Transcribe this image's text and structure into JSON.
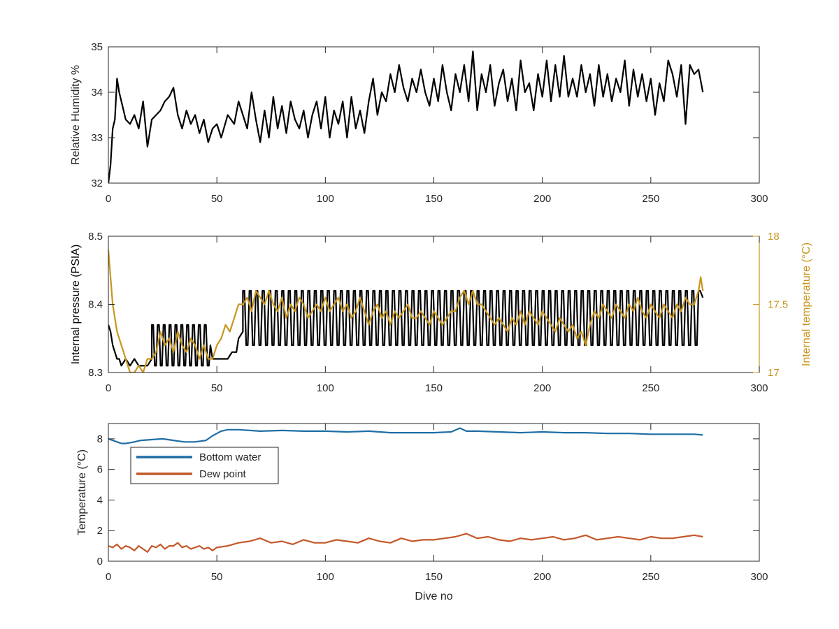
{
  "chart_data": [
    {
      "type": "line",
      "ylabel": "Relative Humidity %",
      "xlim": [
        0,
        300
      ],
      "ylim": [
        32,
        35
      ],
      "xticks": [
        0,
        50,
        100,
        150,
        200,
        250,
        300
      ],
      "yticks": [
        32,
        33,
        34,
        35
      ],
      "series": [
        {
          "color": "#000000",
          "x": [
            0,
            1,
            2,
            3,
            4,
            5,
            6,
            8,
            10,
            12,
            14,
            16,
            18,
            20,
            22,
            24,
            26,
            28,
            30,
            32,
            34,
            36,
            38,
            40,
            42,
            44,
            46,
            48,
            50,
            52,
            55,
            58,
            60,
            62,
            64,
            66,
            68,
            70,
            72,
            74,
            76,
            78,
            80,
            82,
            84,
            86,
            88,
            90,
            92,
            94,
            96,
            98,
            100,
            102,
            104,
            106,
            108,
            110,
            112,
            114,
            116,
            118,
            120,
            122,
            124,
            126,
            128,
            130,
            132,
            134,
            136,
            138,
            140,
            142,
            144,
            146,
            148,
            150,
            152,
            154,
            156,
            158,
            160,
            162,
            164,
            166,
            168,
            170,
            172,
            174,
            176,
            178,
            180,
            182,
            184,
            186,
            188,
            190,
            192,
            194,
            196,
            198,
            200,
            202,
            204,
            206,
            208,
            210,
            212,
            214,
            216,
            218,
            220,
            222,
            224,
            226,
            228,
            230,
            232,
            234,
            236,
            238,
            240,
            242,
            244,
            246,
            248,
            250,
            252,
            254,
            256,
            258,
            260,
            262,
            264,
            266,
            268,
            270,
            272,
            274
          ],
          "y": [
            32.0,
            32.4,
            33.2,
            33.4,
            34.3,
            34.0,
            33.8,
            33.4,
            33.3,
            33.5,
            33.2,
            33.8,
            32.8,
            33.4,
            33.5,
            33.6,
            33.8,
            33.9,
            34.1,
            33.5,
            33.2,
            33.6,
            33.3,
            33.5,
            33.1,
            33.4,
            32.9,
            33.2,
            33.3,
            33.0,
            33.5,
            33.3,
            33.8,
            33.5,
            33.2,
            34.0,
            33.4,
            32.9,
            33.6,
            33.0,
            33.9,
            33.2,
            33.7,
            33.1,
            33.8,
            33.4,
            33.2,
            33.6,
            33.0,
            33.5,
            33.8,
            33.2,
            33.9,
            33.0,
            33.6,
            33.3,
            33.8,
            33.0,
            33.9,
            33.2,
            33.6,
            33.1,
            33.8,
            34.3,
            33.5,
            34.0,
            33.8,
            34.4,
            34.0,
            34.6,
            34.1,
            33.8,
            34.3,
            34.0,
            34.5,
            34.0,
            33.7,
            34.3,
            33.8,
            34.6,
            34.0,
            33.6,
            34.4,
            34.0,
            34.6,
            33.8,
            34.9,
            33.6,
            34.4,
            34.0,
            34.6,
            33.7,
            34.2,
            34.5,
            33.8,
            34.3,
            33.6,
            34.7,
            34.0,
            34.2,
            33.6,
            34.4,
            33.9,
            34.7,
            33.8,
            34.6,
            33.9,
            34.8,
            33.9,
            34.3,
            33.9,
            34.6,
            34.0,
            34.4,
            33.7,
            34.6,
            33.9,
            34.4,
            33.8,
            34.3,
            34.0,
            34.7,
            33.7,
            34.5,
            33.9,
            34.4,
            33.8,
            34.3,
            33.5,
            34.2,
            33.8,
            34.7,
            34.4,
            33.9,
            34.6,
            33.3,
            34.6,
            34.4,
            34.5,
            34.0
          ]
        }
      ]
    },
    {
      "type": "line",
      "ylabel": "Internal pressure (PSIA)",
      "ylabel_right": "Internal temperature (°C)",
      "xlim": [
        0,
        300
      ],
      "ylim": [
        8.3,
        8.5
      ],
      "ylim_right": [
        17,
        18
      ],
      "xticks": [
        0,
        50,
        100,
        150,
        200,
        250,
        300
      ],
      "yticks": [
        8.3,
        8.4,
        8.5
      ],
      "yticks_right": [
        17,
        17.5,
        18
      ],
      "series": [
        {
          "axis": "left",
          "color": "#000000",
          "x": [
            0,
            1,
            2,
            3,
            4,
            5,
            6,
            8,
            10,
            12,
            14,
            16,
            18,
            20,
            40,
            47,
            48,
            52,
            55,
            57,
            59,
            60,
            62,
            270,
            272,
            274
          ],
          "y": [
            8.37,
            8.36,
            8.34,
            8.33,
            8.32,
            8.32,
            8.31,
            8.32,
            8.31,
            8.32,
            8.31,
            8.31,
            8.31,
            8.32,
            8.32,
            8.34,
            8.32,
            8.32,
            8.32,
            8.33,
            8.33,
            8.35,
            8.36,
            8.37,
            8.42,
            8.41
          ],
          "oscillation": [
            {
              "x_start": 20,
              "x_end": 47,
              "period": 2.7,
              "low": 8.31,
              "high": 8.37
            },
            {
              "x_start": 62,
              "x_end": 272,
              "period": 3.0,
              "low": 8.34,
              "high": 8.42
            }
          ]
        },
        {
          "axis": "right",
          "color": "#c8961e",
          "x": [
            0,
            1,
            2,
            3,
            4,
            6,
            8,
            10,
            12,
            14,
            16,
            18,
            20,
            22,
            24,
            26,
            28,
            30,
            32,
            34,
            36,
            38,
            40,
            42,
            44,
            46,
            48,
            50,
            52,
            54,
            56,
            58,
            60,
            62,
            64,
            66,
            68,
            70,
            72,
            74,
            76,
            78,
            80,
            82,
            84,
            86,
            88,
            90,
            92,
            94,
            96,
            98,
            100,
            102,
            104,
            106,
            108,
            110,
            112,
            114,
            116,
            118,
            120,
            122,
            124,
            126,
            128,
            130,
            132,
            134,
            136,
            138,
            140,
            142,
            144,
            146,
            148,
            150,
            152,
            154,
            156,
            158,
            160,
            162,
            164,
            166,
            168,
            170,
            172,
            174,
            176,
            178,
            180,
            182,
            184,
            186,
            188,
            190,
            192,
            194,
            196,
            198,
            200,
            202,
            204,
            206,
            208,
            210,
            212,
            214,
            216,
            218,
            220,
            222,
            224,
            226,
            228,
            230,
            232,
            234,
            236,
            238,
            240,
            242,
            244,
            246,
            248,
            250,
            252,
            254,
            256,
            258,
            260,
            262,
            264,
            266,
            268,
            270,
            272,
            273,
            274
          ],
          "y": [
            17.9,
            17.7,
            17.5,
            17.4,
            17.3,
            17.2,
            17.1,
            17.0,
            17.0,
            17.05,
            17.0,
            17.1,
            17.1,
            17.15,
            17.3,
            17.2,
            17.25,
            17.15,
            17.3,
            17.2,
            17.15,
            17.25,
            17.2,
            17.1,
            17.2,
            17.1,
            17.1,
            17.2,
            17.25,
            17.35,
            17.3,
            17.4,
            17.5,
            17.5,
            17.55,
            17.45,
            17.6,
            17.55,
            17.5,
            17.6,
            17.5,
            17.45,
            17.55,
            17.4,
            17.5,
            17.45,
            17.55,
            17.5,
            17.4,
            17.45,
            17.5,
            17.45,
            17.55,
            17.45,
            17.5,
            17.55,
            17.45,
            17.5,
            17.4,
            17.45,
            17.55,
            17.45,
            17.35,
            17.45,
            17.5,
            17.4,
            17.45,
            17.35,
            17.45,
            17.4,
            17.45,
            17.5,
            17.4,
            17.4,
            17.45,
            17.4,
            17.35,
            17.45,
            17.4,
            17.35,
            17.4,
            17.45,
            17.45,
            17.55,
            17.6,
            17.5,
            17.6,
            17.5,
            17.5,
            17.45,
            17.4,
            17.35,
            17.4,
            17.35,
            17.3,
            17.4,
            17.35,
            17.45,
            17.35,
            17.45,
            17.4,
            17.35,
            17.45,
            17.4,
            17.35,
            17.3,
            17.4,
            17.35,
            17.3,
            17.35,
            17.25,
            17.3,
            17.2,
            17.35,
            17.45,
            17.4,
            17.5,
            17.45,
            17.4,
            17.5,
            17.45,
            17.4,
            17.5,
            17.45,
            17.55,
            17.45,
            17.4,
            17.5,
            17.45,
            17.4,
            17.5,
            17.45,
            17.4,
            17.5,
            17.45,
            17.55,
            17.5,
            17.5,
            17.6,
            17.7,
            17.6
          ]
        }
      ]
    },
    {
      "type": "line",
      "xlabel": "Dive no",
      "ylabel": "Temperature (°C)",
      "xlim": [
        0,
        300
      ],
      "ylim": [
        0,
        9
      ],
      "xticks": [
        0,
        50,
        100,
        150,
        200,
        250,
        300
      ],
      "yticks": [
        0,
        2,
        4,
        6,
        8
      ],
      "legend": {
        "position": "upper-left",
        "entries": [
          "Bottom water",
          "Dew point"
        ]
      },
      "series": [
        {
          "name": "Bottom water",
          "color": "#1f6ea6",
          "x": [
            0,
            2,
            4,
            6,
            8,
            10,
            12,
            15,
            20,
            25,
            30,
            35,
            40,
            45,
            48,
            50,
            52,
            55,
            60,
            70,
            80,
            90,
            100,
            110,
            120,
            130,
            140,
            150,
            158,
            162,
            165,
            170,
            180,
            190,
            200,
            210,
            220,
            230,
            240,
            250,
            260,
            270,
            274
          ],
          "y": [
            8.0,
            7.9,
            7.8,
            7.7,
            7.7,
            7.75,
            7.8,
            7.9,
            7.95,
            8.0,
            7.9,
            7.8,
            7.8,
            7.9,
            8.2,
            8.35,
            8.5,
            8.6,
            8.6,
            8.5,
            8.55,
            8.5,
            8.5,
            8.45,
            8.5,
            8.4,
            8.4,
            8.4,
            8.45,
            8.7,
            8.5,
            8.5,
            8.45,
            8.4,
            8.45,
            8.4,
            8.4,
            8.35,
            8.35,
            8.3,
            8.3,
            8.3,
            8.25
          ]
        },
        {
          "name": "Dew point",
          "color": "#c4582a",
          "x": [
            0,
            2,
            4,
            6,
            8,
            10,
            12,
            14,
            16,
            18,
            20,
            22,
            24,
            26,
            28,
            30,
            32,
            34,
            36,
            38,
            40,
            42,
            44,
            46,
            48,
            50,
            55,
            60,
            65,
            70,
            75,
            80,
            85,
            90,
            95,
            100,
            105,
            110,
            115,
            120,
            125,
            130,
            135,
            140,
            145,
            150,
            155,
            160,
            165,
            170,
            175,
            180,
            185,
            190,
            195,
            200,
            205,
            210,
            215,
            220,
            225,
            230,
            235,
            240,
            245,
            250,
            255,
            260,
            265,
            270,
            274
          ],
          "y": [
            1.0,
            0.9,
            1.1,
            0.8,
            1.0,
            0.9,
            0.7,
            1.0,
            0.8,
            0.6,
            1.0,
            0.9,
            1.1,
            0.8,
            1.0,
            1.0,
            1.2,
            0.9,
            1.0,
            0.8,
            0.9,
            1.0,
            0.8,
            0.9,
            0.7,
            0.9,
            1.0,
            1.2,
            1.3,
            1.5,
            1.2,
            1.3,
            1.1,
            1.4,
            1.2,
            1.2,
            1.4,
            1.3,
            1.2,
            1.5,
            1.3,
            1.2,
            1.5,
            1.3,
            1.4,
            1.4,
            1.5,
            1.6,
            1.8,
            1.5,
            1.6,
            1.4,
            1.3,
            1.5,
            1.4,
            1.5,
            1.6,
            1.4,
            1.5,
            1.7,
            1.4,
            1.5,
            1.6,
            1.5,
            1.4,
            1.6,
            1.5,
            1.5,
            1.6,
            1.7,
            1.6
          ]
        }
      ]
    }
  ]
}
